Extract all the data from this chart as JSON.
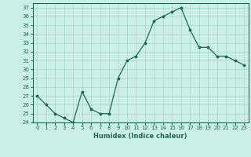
{
  "x": [
    0,
    1,
    2,
    3,
    4,
    5,
    6,
    7,
    8,
    9,
    10,
    11,
    12,
    13,
    14,
    15,
    16,
    17,
    18,
    19,
    20,
    21,
    22,
    23
  ],
  "y": [
    27,
    26,
    25,
    24.5,
    24,
    27.5,
    25.5,
    25,
    25,
    29,
    31,
    31.5,
    33,
    35.5,
    36,
    36.5,
    37,
    34.5,
    32.5,
    32.5,
    31.5,
    31.5,
    31,
    30.5
  ],
  "line_color": "#1a6b5a",
  "marker": "*",
  "marker_size": 2.5,
  "bg_color": "#cceee8",
  "grid_color": "#aaddcc",
  "xlabel": "Humidex (Indice chaleur)",
  "ylim": [
    24,
    37.5
  ],
  "xlim": [
    -0.5,
    23.5
  ],
  "yticks": [
    24,
    25,
    26,
    27,
    28,
    29,
    30,
    31,
    32,
    33,
    34,
    35,
    36,
    37
  ],
  "xticks": [
    0,
    1,
    2,
    3,
    4,
    5,
    6,
    7,
    8,
    9,
    10,
    11,
    12,
    13,
    14,
    15,
    16,
    17,
    18,
    19,
    20,
    21,
    22,
    23
  ]
}
